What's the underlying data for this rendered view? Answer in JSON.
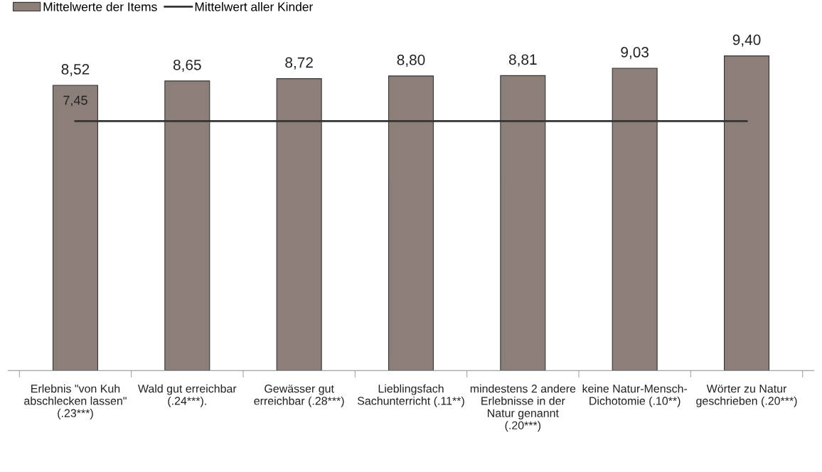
{
  "chart_data": {
    "type": "bar",
    "categories": [
      "Erlebnis \"von Kuh\nabschlecken lassen\"\n(.23***)",
      "Wald gut erreichbar\n(.24***).",
      "Gewässer gut\nerreichbar (.28***)",
      "Lieblingsfach\nSachunterricht (.11**)",
      "mindestens 2 andere\nErlebnisse in der\nNatur genannt\n(.20***)",
      "keine Natur-Mensch-\nDichotomie (.10**)",
      "Wörter zu Natur\ngeschrieben (.20***)"
    ],
    "series": [
      {
        "name": "Mittelwerte der Items",
        "color": "#8c7f7a",
        "values": [
          8.52,
          8.65,
          8.72,
          8.8,
          8.81,
          9.03,
          9.4
        ],
        "value_labels": [
          "8,52",
          "8,65",
          "8,72",
          "8,80",
          "8,81",
          "9,03",
          "9,40"
        ]
      },
      {
        "name": "Mittelwert aller Kinder",
        "type": "line",
        "color": "#333333",
        "values": [
          7.45,
          7.45,
          7.45,
          7.45,
          7.45,
          7.45,
          7.45
        ],
        "value_labels": [
          "7,45",
          null,
          null,
          null,
          null,
          null,
          null
        ]
      }
    ],
    "tick_labels": "x",
    "grid": false,
    "legend": "top left",
    "marker": "none",
    "line_style": "solid"
  }
}
